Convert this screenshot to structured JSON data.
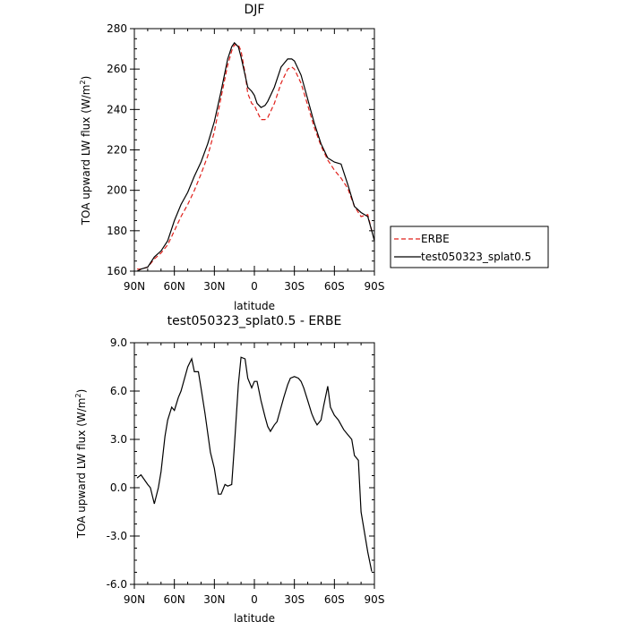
{
  "chart_data": [
    {
      "type": "line",
      "title": "DJF",
      "xlabel": "latitude",
      "ylabel": "TOA upward LW flux (W/m²)",
      "xlim": [
        90,
        -90
      ],
      "ylim": [
        160,
        280
      ],
      "xticks": [
        90,
        60,
        30,
        0,
        -30,
        -60,
        -90
      ],
      "xtick_labels": [
        "90N",
        "60N",
        "30N",
        "0",
        "30S",
        "60S",
        "90S"
      ],
      "yticks": [
        160,
        180,
        200,
        220,
        240,
        260,
        280
      ],
      "ytick_labels": [
        "160",
        "180",
        "200",
        "220",
        "240",
        "260",
        "280"
      ],
      "legend_position": "right",
      "series": [
        {
          "name": "ERBE",
          "color": "#e0201b",
          "dash": "dashed",
          "x": [
            88,
            85,
            80,
            75,
            70,
            65,
            60,
            55,
            50,
            45,
            40,
            35,
            30,
            25,
            20,
            17,
            15,
            12,
            10,
            7,
            5,
            2,
            0,
            -2,
            -5,
            -8,
            -10,
            -15,
            -20,
            -25,
            -28,
            -30,
            -35,
            -40,
            -45,
            -50,
            -55,
            -60,
            -65,
            -70,
            -75,
            -80,
            -85,
            -88
          ],
          "y": [
            161,
            161,
            162,
            166,
            169,
            173,
            180,
            187,
            193,
            200,
            208,
            217,
            229,
            246,
            262,
            269,
            272,
            272,
            269,
            258,
            248,
            243,
            242,
            239,
            235,
            235,
            236,
            243,
            253,
            260,
            261,
            260,
            253,
            242,
            231,
            222,
            215,
            210,
            206,
            201,
            192,
            187,
            188,
            180
          ]
        },
        {
          "name": "test050323_splat0.5",
          "color": "#000000",
          "dash": "solid",
          "x": [
            88,
            85,
            80,
            75,
            70,
            65,
            60,
            55,
            50,
            45,
            40,
            35,
            30,
            25,
            20,
            17,
            15,
            12,
            10,
            7,
            5,
            2,
            0,
            -2,
            -5,
            -8,
            -10,
            -15,
            -20,
            -25,
            -28,
            -30,
            -35,
            -40,
            -45,
            -50,
            -55,
            -60,
            -65,
            -70,
            -75,
            -80,
            -85,
            -88,
            -90
          ],
          "y": [
            160,
            161,
            162,
            167,
            170,
            175,
            185,
            193,
            199,
            207,
            214,
            223,
            234,
            249,
            265,
            271,
            273,
            271,
            266,
            257,
            251,
            249,
            247,
            243,
            241,
            242,
            244,
            251,
            261,
            265,
            265,
            264,
            257,
            245,
            233,
            223,
            216,
            214,
            213,
            203,
            192,
            189,
            187,
            180,
            175
          ]
        }
      ]
    },
    {
      "type": "line",
      "title": "test050323_splat0.5 - ERBE",
      "xlabel": "latitude",
      "ylabel": "TOA upward LW flux (W/m²)",
      "xlim": [
        90,
        -90
      ],
      "ylim": [
        -6,
        9
      ],
      "xticks": [
        90,
        60,
        30,
        0,
        -30,
        -60,
        -90
      ],
      "xtick_labels": [
        "90N",
        "60N",
        "30N",
        "0",
        "30S",
        "60S",
        "90S"
      ],
      "yticks": [
        -6,
        -3,
        0,
        3,
        6,
        9
      ],
      "ytick_labels": [
        "-6.0",
        "-3.0",
        "0.0",
        "3.0",
        "6.0",
        "9.0"
      ],
      "series": [
        {
          "color": "#000000",
          "dash": "solid",
          "x": [
            88,
            85,
            80,
            78,
            75,
            72,
            70,
            67,
            65,
            62,
            60,
            57,
            55,
            50,
            47,
            45,
            42,
            40,
            37,
            33,
            30,
            27,
            25,
            22,
            20,
            17,
            15,
            12,
            10,
            7,
            5,
            2,
            0,
            -2,
            -5,
            -8,
            -10,
            -12,
            -15,
            -17,
            -20,
            -22,
            -25,
            -27,
            -30,
            -33,
            -35,
            -37,
            -40,
            -43,
            -45,
            -47,
            -50,
            -52,
            -55,
            -57,
            -60,
            -63,
            -65,
            -67,
            -70,
            -73,
            -75,
            -78,
            -80,
            -83,
            -85,
            -88
          ],
          "y": [
            0.6,
            0.8,
            0.2,
            0.0,
            -1.0,
            0.0,
            1.0,
            3.2,
            4.2,
            5.0,
            4.8,
            5.6,
            6.0,
            7.5,
            8.0,
            7.2,
            7.2,
            6.2,
            4.6,
            2.2,
            1.2,
            -0.4,
            -0.4,
            0.2,
            0.1,
            0.2,
            2.6,
            6.4,
            8.1,
            8.0,
            6.8,
            6.2,
            6.6,
            6.6,
            5.4,
            4.4,
            3.8,
            3.5,
            3.9,
            4.1,
            5.0,
            5.6,
            6.4,
            6.8,
            6.9,
            6.8,
            6.6,
            6.2,
            5.4,
            4.6,
            4.2,
            3.9,
            4.2,
            5.1,
            6.3,
            5.0,
            4.5,
            4.2,
            3.9,
            3.6,
            3.3,
            3.0,
            2.0,
            1.7,
            -1.5,
            -3.0,
            -4.0,
            -5.2
          ]
        }
      ]
    }
  ]
}
